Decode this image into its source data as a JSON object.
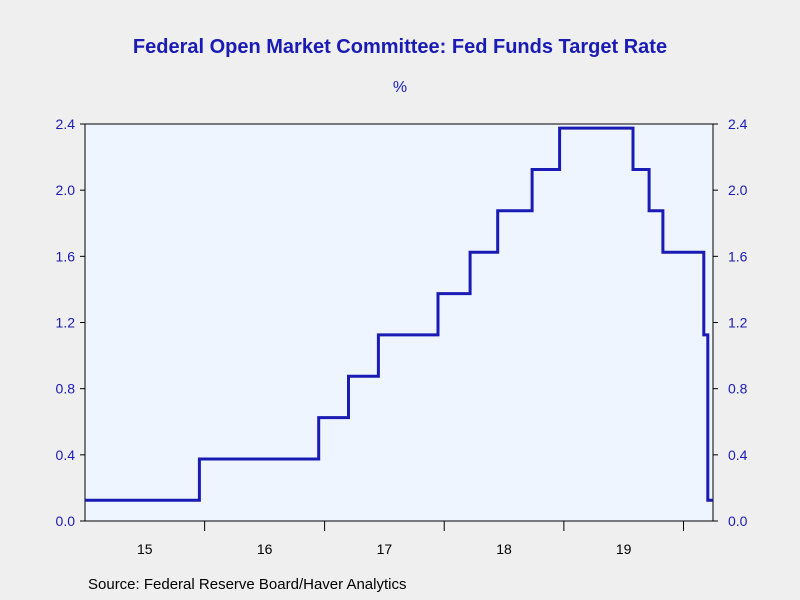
{
  "chart_data": {
    "type": "line",
    "title": "Federal Open Market Committee: Fed Funds Target Rate",
    "unit": "%",
    "source": "Source:  Federal Reserve Board/Haver Analytics",
    "xlabel": "",
    "ylabel": "",
    "x_tick_labels": [
      "15",
      "16",
      "17",
      "18",
      "19"
    ],
    "xlim": [
      "2015-01-01",
      "2020-03-31"
    ],
    "ylim": [
      0.0,
      2.4
    ],
    "y_ticks": [
      "0.0",
      "0.4",
      "0.8",
      "1.2",
      "1.6",
      "2.0",
      "2.4"
    ],
    "grid": false,
    "step_line": true,
    "series": [
      {
        "color": "#1a1ab4",
        "x": [
          "2015-01-01",
          "2015-12-16",
          "2016-12-14",
          "2017-03-15",
          "2017-06-14",
          "2017-12-13",
          "2018-03-21",
          "2018-06-13",
          "2018-09-26",
          "2018-12-19",
          "2019-07-31",
          "2019-09-18",
          "2019-10-30",
          "2020-03-03",
          "2020-03-15",
          "2020-03-31"
        ],
        "values": [
          0.125,
          0.375,
          0.625,
          0.875,
          1.125,
          1.375,
          1.625,
          1.875,
          2.125,
          2.375,
          2.125,
          1.875,
          1.625,
          1.125,
          0.125,
          0.125
        ]
      }
    ]
  }
}
